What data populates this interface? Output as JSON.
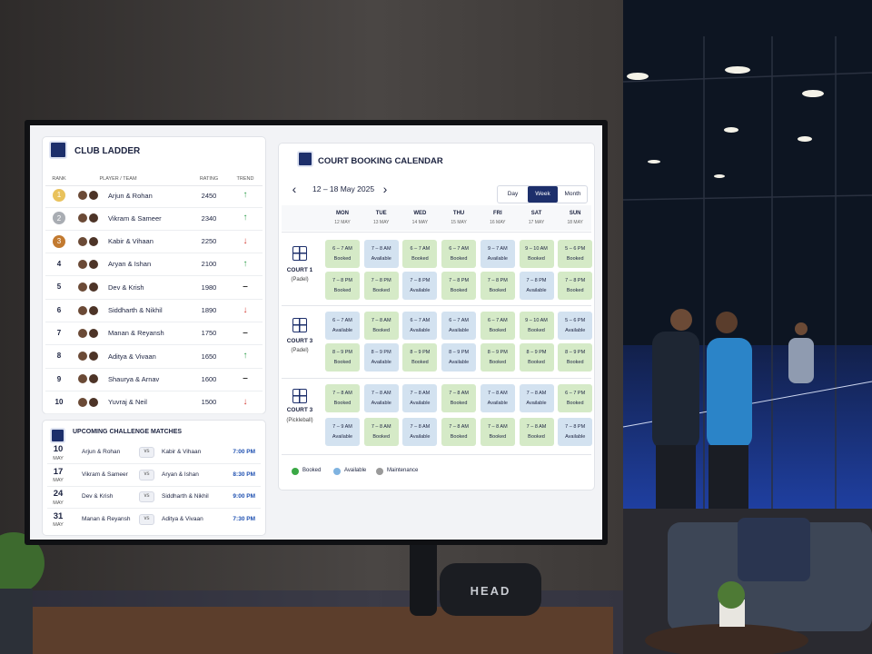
{
  "scene": {
    "bag_brand": "HEAD"
  },
  "ladder": {
    "title": "CLUB LADDER",
    "headers": [
      "RANK",
      "PLAYER / TEAM",
      "RATING",
      "TREND"
    ],
    "medal_colors": [
      "#e9c25c",
      "#a9adb3",
      "#c27a30"
    ],
    "rows": [
      {
        "rank": 1,
        "team": "Arjun & Rohan",
        "rating": 2450,
        "trend": "↑",
        "trend_color": "#2e9e4a"
      },
      {
        "rank": 2,
        "team": "Vikram & Sameer",
        "rating": 2340,
        "trend": "↑",
        "trend_color": "#2e9e4a"
      },
      {
        "rank": 3,
        "team": "Kabir & Vihaan",
        "rating": 2250,
        "trend": "↓",
        "trend_color": "#d23b32"
      },
      {
        "rank": 4,
        "team": "Aryan & Ishan",
        "rating": 2100,
        "trend": "↑",
        "trend_color": "#2e9e4a"
      },
      {
        "rank": 5,
        "team": "Dev & Krish",
        "rating": 1980,
        "trend": "–",
        "trend_color": "#333333"
      },
      {
        "rank": 6,
        "team": "Siddharth & Nikhil",
        "rating": 1890,
        "trend": "↓",
        "trend_color": "#d23b32"
      },
      {
        "rank": 7,
        "team": "Manan & Reyansh",
        "rating": 1750,
        "trend": "–",
        "trend_color": "#333333"
      },
      {
        "rank": 8,
        "team": "Aditya & Vivaan",
        "rating": 1650,
        "trend": "↑",
        "trend_color": "#2e9e4a"
      },
      {
        "rank": 9,
        "team": "Shaurya & Arnav",
        "rating": 1600,
        "trend": "–",
        "trend_color": "#333333"
      },
      {
        "rank": 10,
        "team": "Yuvraj & Neil",
        "rating": 1500,
        "trend": "↓",
        "trend_color": "#d23b32"
      }
    ]
  },
  "matches": {
    "title": "UPCOMING CHALLENGE MATCHES",
    "vs": "vs",
    "rows": [
      {
        "day": "10",
        "month": "MAY",
        "team_a": "Arjun & Rohan",
        "team_b": "Kabir & Vihaan",
        "time": "7:00 PM"
      },
      {
        "day": "17",
        "month": "MAY",
        "team_a": "Vikram & Sameer",
        "team_b": "Aryan & Ishan",
        "time": "8:30 PM"
      },
      {
        "day": "24",
        "month": "MAY",
        "team_a": "Dev & Krish",
        "team_b": "Siddharth & Nikhil",
        "time": "9:00 PM"
      },
      {
        "day": "31",
        "month": "MAY",
        "team_a": "Manan & Reyansh",
        "team_b": "Aditya & Vivaan",
        "time": "7:30 PM"
      }
    ]
  },
  "calendar": {
    "title": "COURT BOOKING CALENDAR",
    "range": "12 – 18 May 2025",
    "views": [
      "Day",
      "Week",
      "Month"
    ],
    "active_view": "Week",
    "days": [
      {
        "name": "MON",
        "date": "12 MAY"
      },
      {
        "name": "TUE",
        "date": "13 MAY"
      },
      {
        "name": "WED",
        "date": "14 MAY"
      },
      {
        "name": "THU",
        "date": "15 MAY"
      },
      {
        "name": "FRI",
        "date": "16 MAY"
      },
      {
        "name": "SAT",
        "date": "17 MAY"
      },
      {
        "name": "SUN",
        "date": "18 MAY"
      }
    ],
    "courts": [
      {
        "name": "COURT 1",
        "kind": "(Padel)",
        "slots": [
          [
            {
              "time": "6 – 7 AM",
              "status": "Booked"
            },
            {
              "time": "7 – 8 AM",
              "status": "Available"
            },
            {
              "time": "6 – 7 AM",
              "status": "Booked"
            },
            {
              "time": "6 – 7 AM",
              "status": "Booked"
            },
            {
              "time": "9 – 7 AM",
              "status": "Available"
            },
            {
              "time": "9 – 10 AM",
              "status": "Booked"
            },
            {
              "time": "5 – 6 PM",
              "status": "Booked"
            }
          ],
          [
            {
              "time": "7 – 8 PM",
              "status": "Booked"
            },
            {
              "time": "7 – 8 PM",
              "status": "Booked"
            },
            {
              "time": "7 – 8 PM",
              "status": "Available"
            },
            {
              "time": "7 – 8 PM",
              "status": "Booked"
            },
            {
              "time": "7 – 8 PM",
              "status": "Booked"
            },
            {
              "time": "7 – 8 PM",
              "status": "Available"
            },
            {
              "time": "7 – 8 PM",
              "status": "Booked"
            }
          ]
        ]
      },
      {
        "name": "COURT 3",
        "kind": "(Padel)",
        "slots": [
          [
            {
              "time": "6 – 7 AM",
              "status": "Available"
            },
            {
              "time": "7 – 8 AM",
              "status": "Booked"
            },
            {
              "time": "6 – 7 AM",
              "status": "Available"
            },
            {
              "time": "6 – 7 AM",
              "status": "Available"
            },
            {
              "time": "6 – 7 AM",
              "status": "Booked"
            },
            {
              "time": "9 – 10 AM",
              "status": "Booked"
            },
            {
              "time": "5 – 6 PM",
              "status": "Available"
            }
          ],
          [
            {
              "time": "8 – 9 PM",
              "status": "Booked"
            },
            {
              "time": "8 – 9 PM",
              "status": "Available"
            },
            {
              "time": "8 – 9 PM",
              "status": "Booked"
            },
            {
              "time": "8 – 9 PM",
              "status": "Available"
            },
            {
              "time": "8 – 9 PM",
              "status": "Booked"
            },
            {
              "time": "8 – 9 PM",
              "status": "Booked"
            },
            {
              "time": "8 – 9 PM",
              "status": "Booked"
            }
          ]
        ]
      },
      {
        "name": "COURT 3",
        "kind": "(Pickleball)",
        "slots": [
          [
            {
              "time": "7 – 8 AM",
              "status": "Booked"
            },
            {
              "time": "7 – 8 AM",
              "status": "Available"
            },
            {
              "time": "7 – 8 AM",
              "status": "Available"
            },
            {
              "time": "7 – 8 AM",
              "status": "Booked"
            },
            {
              "time": "7 – 8 AM",
              "status": "Available"
            },
            {
              "time": "7 – 8 AM",
              "status": "Available"
            },
            {
              "time": "6 – 7 PM",
              "status": "Booked"
            }
          ],
          [
            {
              "time": "7 – 9 AM",
              "status": "Available"
            },
            {
              "time": "7 – 8 AM",
              "status": "Booked"
            },
            {
              "time": "7 – 8 AM",
              "status": "Available"
            },
            {
              "time": "7 – 8 AM",
              "status": "Booked"
            },
            {
              "time": "7 – 8 AM",
              "status": "Booked"
            },
            {
              "time": "7 – 8 AM",
              "status": "Booked"
            },
            {
              "time": "7 – 8 PM",
              "status": "Available"
            }
          ]
        ]
      }
    ],
    "legend": [
      {
        "name": "Booked",
        "color": "#3aa845",
        "fill": "#d5eac7"
      },
      {
        "name": "Available",
        "color": "#7fb3e0",
        "fill": "#d3e2f0"
      },
      {
        "name": "Maintenance",
        "color": "#9a9a9a",
        "fill": "#e4e4e4"
      }
    ]
  }
}
